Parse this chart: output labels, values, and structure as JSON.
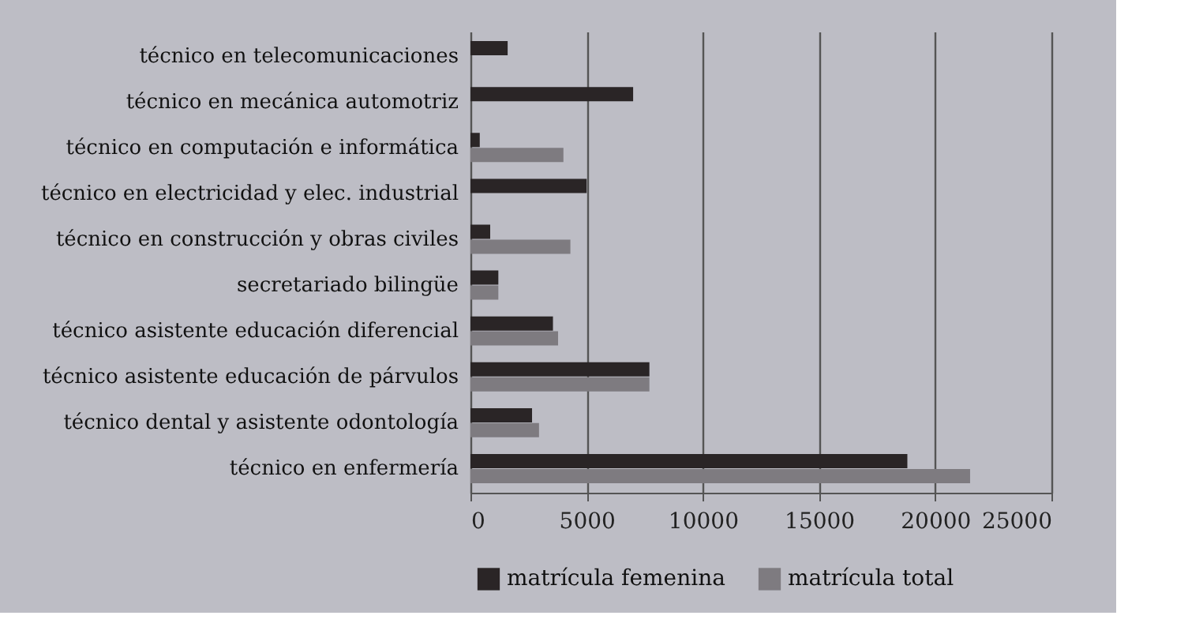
{
  "chart_data": {
    "type": "bar",
    "orientation": "horizontal",
    "categories": [
      "técnico en telecomunicaciones",
      "técnico en mecánica automotriz",
      "técnico en computación e informática",
      "técnico en electricidad y elec. industrial",
      "técnico en construcción y obras civiles",
      "secretariado bilingüe",
      "técnico asistente educación diferencial",
      "técnico asistente educación de párvulos",
      "técnico dental y asistente odontología",
      "técnico en enfermería"
    ],
    "series": [
      {
        "name": "matrícula femenina",
        "color": "#2a2526",
        "values": [
          1600,
          7000,
          400,
          5000,
          850,
          1200,
          3550,
          7700,
          2650,
          18800
        ]
      },
      {
        "name": "matrícula total",
        "color": "#7e7b80",
        "values": [
          null,
          null,
          4000,
          null,
          4300,
          1200,
          3770,
          7700,
          2950,
          21500
        ]
      }
    ],
    "xlim": [
      0,
      25000
    ],
    "xticks": [
      0,
      5000,
      10000,
      15000,
      20000,
      25000
    ],
    "grid": "x",
    "legend": "bottom"
  }
}
